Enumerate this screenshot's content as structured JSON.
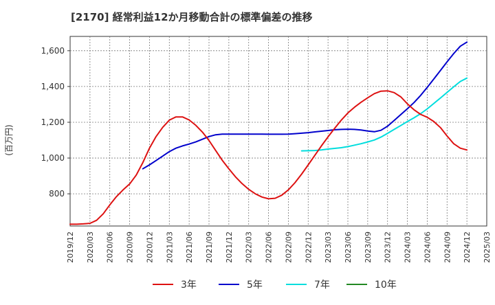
{
  "chart_data": {
    "type": "line",
    "title": "[2170]  経常利益12か月移動合計の標準偏差の推移",
    "ylabel": "(百万円)",
    "xlabel": "",
    "ylim": [
      620,
      1680
    ],
    "yticks": [
      800,
      1000,
      1200,
      1400,
      1600
    ],
    "ytick_labels": [
      "800",
      "1,000",
      "1,200",
      "1,400",
      "1,600"
    ],
    "x_start": "2019-12",
    "x_end": "2025-03",
    "xtick_labels": [
      "2019/12",
      "2020/03",
      "2020/06",
      "2020/09",
      "2020/12",
      "2021/03",
      "2021/06",
      "2021/09",
      "2021/12",
      "2022/03",
      "2022/06",
      "2022/09",
      "2022/12",
      "2023/03",
      "2023/06",
      "2023/09",
      "2023/12",
      "2024/03",
      "2024/06",
      "2024/09",
      "2024/12",
      "2025/03"
    ],
    "grid": true,
    "legend_position": "bottom",
    "series": [
      {
        "name": "3年",
        "color": "#dd1111",
        "x": [
          "2019-12",
          "2020-01",
          "2020-02",
          "2020-03",
          "2020-04",
          "2020-05",
          "2020-06",
          "2020-07",
          "2020-08",
          "2020-09",
          "2020-10",
          "2020-11",
          "2020-12",
          "2021-01",
          "2021-02",
          "2021-03",
          "2021-04",
          "2021-05",
          "2021-06",
          "2021-07",
          "2021-08",
          "2021-09",
          "2021-10",
          "2021-11",
          "2021-12",
          "2022-01",
          "2022-02",
          "2022-03",
          "2022-04",
          "2022-05",
          "2022-06",
          "2022-07",
          "2022-08",
          "2022-09",
          "2022-10",
          "2022-11",
          "2022-12",
          "2023-01",
          "2023-02",
          "2023-03",
          "2023-04",
          "2023-05",
          "2023-06",
          "2023-07",
          "2023-08",
          "2023-09",
          "2023-10",
          "2023-11",
          "2023-12",
          "2024-01",
          "2024-02",
          "2024-03",
          "2024-04",
          "2024-05",
          "2024-06",
          "2024-07",
          "2024-08",
          "2024-09",
          "2024-10",
          "2024-11",
          "2024-12"
        ],
        "values": [
          630,
          630,
          632,
          635,
          652,
          688,
          738,
          784,
          822,
          855,
          905,
          975,
          1055,
          1120,
          1172,
          1212,
          1230,
          1230,
          1213,
          1183,
          1145,
          1098,
          1043,
          988,
          940,
          895,
          857,
          825,
          800,
          782,
          772,
          775,
          792,
          822,
          862,
          910,
          962,
          1015,
          1068,
          1118,
          1166,
          1212,
          1252,
          1284,
          1312,
          1337,
          1360,
          1374,
          1376,
          1366,
          1342,
          1303,
          1270,
          1244,
          1228,
          1204,
          1170,
          1123,
          1080,
          1055,
          1045
        ],
        "render_order": 4
      },
      {
        "name": "5年",
        "color": "#0000cc",
        "x": [
          "2020-11",
          "2020-12",
          "2021-01",
          "2021-02",
          "2021-03",
          "2021-04",
          "2021-05",
          "2021-06",
          "2021-07",
          "2021-08",
          "2021-09",
          "2021-10",
          "2021-11",
          "2021-12",
          "2022-01",
          "2022-02",
          "2022-03",
          "2022-04",
          "2022-05",
          "2022-06",
          "2022-07",
          "2022-08",
          "2022-09",
          "2022-10",
          "2022-11",
          "2022-12",
          "2023-01",
          "2023-02",
          "2023-03",
          "2023-04",
          "2023-05",
          "2023-06",
          "2023-07",
          "2023-08",
          "2023-09",
          "2023-10",
          "2023-11",
          "2023-12",
          "2024-01",
          "2024-02",
          "2024-03",
          "2024-04",
          "2024-05",
          "2024-06",
          "2024-07",
          "2024-08",
          "2024-09",
          "2024-10",
          "2024-11",
          "2024-12"
        ],
        "values": [
          940,
          962,
          986,
          1011,
          1036,
          1055,
          1068,
          1078,
          1090,
          1105,
          1120,
          1130,
          1134,
          1134,
          1134,
          1134,
          1134,
          1134,
          1134,
          1133,
          1133,
          1133,
          1134,
          1136,
          1139,
          1142,
          1146,
          1150,
          1154,
          1158,
          1160,
          1161,
          1160,
          1157,
          1151,
          1147,
          1155,
          1178,
          1210,
          1243,
          1276,
          1310,
          1350,
          1395,
          1442,
          1490,
          1538,
          1584,
          1625,
          1648
        ],
        "render_order": 3
      },
      {
        "name": "7年",
        "color": "#00dddd",
        "x": [
          "2022-11",
          "2022-12",
          "2023-01",
          "2023-02",
          "2023-03",
          "2023-04",
          "2023-05",
          "2023-06",
          "2023-07",
          "2023-08",
          "2023-09",
          "2023-10",
          "2023-11",
          "2023-12",
          "2024-01",
          "2024-02",
          "2024-03",
          "2024-04",
          "2024-05",
          "2024-06",
          "2024-07",
          "2024-08",
          "2024-09",
          "2024-10",
          "2024-11",
          "2024-12"
        ],
        "values": [
          1040,
          1041,
          1042,
          1045,
          1050,
          1054,
          1058,
          1064,
          1072,
          1080,
          1090,
          1101,
          1117,
          1138,
          1160,
          1182,
          1204,
          1225,
          1248,
          1275,
          1305,
          1336,
          1367,
          1398,
          1428,
          1447
        ],
        "render_order": 2
      },
      {
        "name": "10年",
        "color": "#228822",
        "x": [],
        "values": [],
        "render_order": 1
      }
    ]
  }
}
